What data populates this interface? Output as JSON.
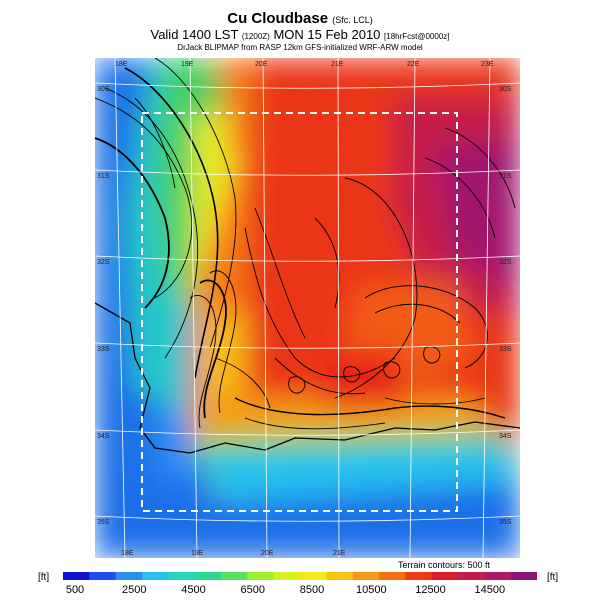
{
  "header": {
    "title": "Cu Cloudbase",
    "title_suffix": "(Sfc. LCL)",
    "valid_main": "Valid 1400 LST",
    "valid_code": "(1200Z)",
    "valid_date": "MON 15 Feb 2010",
    "valid_fcst": "[18hrFcst@0000z]",
    "model": "DrJack BLIPMAP from RASP 12km GFS-initialized WRF-ARW model"
  },
  "map": {
    "lon_labels": [
      "18E",
      "19E",
      "20E",
      "21E",
      "22E",
      "23E"
    ],
    "lat_labels": [
      "30S",
      "31S",
      "32S",
      "33S",
      "34S",
      "35S"
    ],
    "terrain_note": "Terrain contours: 500 ft"
  },
  "colorbar": {
    "unit_left": "[ft]",
    "unit_right": "[ft]",
    "labels": [
      "500",
      "2500",
      "4500",
      "6500",
      "8500",
      "10500",
      "12500",
      "14500"
    ],
    "colors": [
      "#1010d0",
      "#1e4ef0",
      "#2a8cf6",
      "#28c0f0",
      "#20d8c0",
      "#2cd890",
      "#5ae060",
      "#9ef030",
      "#dcf020",
      "#f8e818",
      "#fbc414",
      "#fb9a10",
      "#f96e10",
      "#ef3a14",
      "#dc1e2c",
      "#c41c4a",
      "#a81a66",
      "#8e1480"
    ]
  },
  "colors": {
    "grid": "#ffffff",
    "dashed_box": "#ffffff",
    "contour": "#000000"
  }
}
